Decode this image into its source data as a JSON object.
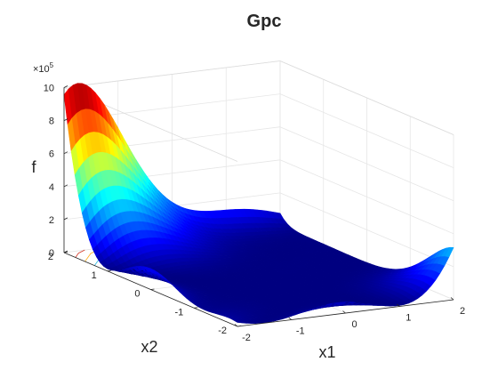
{
  "chart_data": {
    "type": "surface",
    "title": "Gpc",
    "xlabel": "x1",
    "ylabel": "x2",
    "zlabel": "f",
    "xlim": [
      -2,
      2
    ],
    "ylim": [
      -2,
      2
    ],
    "zlim": [
      0,
      1000000
    ],
    "xticks": [
      "-2",
      "-1",
      "0",
      "1",
      "2"
    ],
    "yticks": [
      "-2",
      "-1",
      "0",
      "1",
      "2"
    ],
    "zticks": [
      "0",
      "2",
      "4",
      "6",
      "8",
      "10"
    ],
    "zexponent": {
      "base": "×10",
      "power": "5"
    },
    "colormap": "jet",
    "grid": true,
    "view": "azimuth -37.5, elevation 30",
    "estimated_corner_values": [
      {
        "x1": -2,
        "x2": 2,
        "f": 1000000
      },
      {
        "x1": 2,
        "x2": 2,
        "f": 180000
      },
      {
        "x1": 2,
        "x2": -2,
        "f": 0
      },
      {
        "x1": -2,
        "x2": -2,
        "f": 0
      }
    ]
  },
  "colors": {
    "jet_low": "#00008f",
    "jet_high": "#800000",
    "axis_text": "#262626",
    "grid": "#e6e6e6"
  }
}
